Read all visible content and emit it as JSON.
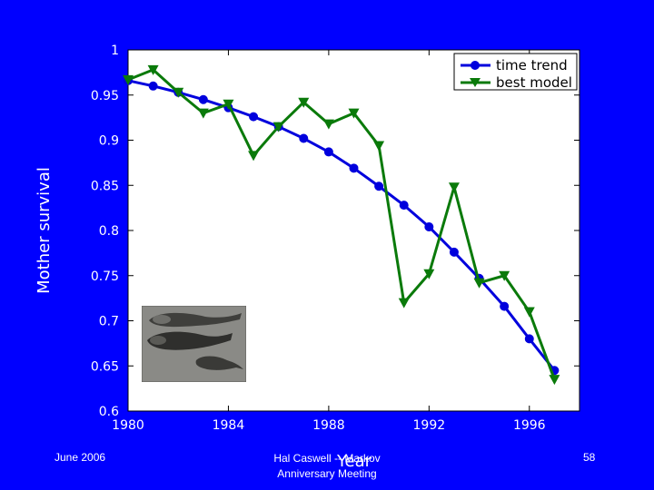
{
  "footer": {
    "date": "June 2006",
    "page": "58",
    "center_line1": "Hal Caswell -- Markov",
    "center_line2": "Anniversary Meeting"
  },
  "colors": {
    "background": "#0000ff",
    "plot_bg": "#ffffff",
    "time_trend": "#0000dd",
    "best_model": "#0a7a0a"
  },
  "chart_data": {
    "type": "line",
    "xlabel": "Year",
    "ylabel": "Mother survival",
    "xlim": [
      1980,
      1998
    ],
    "ylim": [
      0.6,
      1
    ],
    "xticks": [
      "1980",
      "1984",
      "1988",
      "1992",
      "1996"
    ],
    "yticks": [
      "1",
      "0.95",
      "0.9",
      "0.85",
      "0.8",
      "0.75",
      "0.7",
      "0.65",
      "0.6"
    ],
    "legend_position": "top-right",
    "grid": false,
    "series": [
      {
        "name": "time trend",
        "marker": "circle",
        "x": [
          1980,
          1981,
          1982,
          1983,
          1984,
          1985,
          1986,
          1987,
          1988,
          1989,
          1990,
          1991,
          1992,
          1993,
          1994,
          1995,
          1996,
          1997
        ],
        "y": [
          0.966,
          0.96,
          0.953,
          0.945,
          0.936,
          0.926,
          0.915,
          0.902,
          0.887,
          0.869,
          0.849,
          0.828,
          0.804,
          0.776,
          0.747,
          0.716,
          0.68,
          0.645
        ]
      },
      {
        "name": "best model",
        "marker": "triangle-down",
        "x": [
          1980,
          1981,
          1982,
          1983,
          1984,
          1985,
          1986,
          1987,
          1988,
          1989,
          1990,
          1991,
          1992,
          1993,
          1994,
          1995,
          1996,
          1997
        ],
        "y": [
          0.967,
          0.978,
          0.953,
          0.93,
          0.94,
          0.883,
          0.915,
          0.942,
          0.918,
          0.93,
          0.894,
          0.72,
          0.752,
          0.848,
          0.742,
          0.75,
          0.71,
          0.635
        ]
      }
    ]
  },
  "photo": {
    "icon": "whales-photo"
  }
}
